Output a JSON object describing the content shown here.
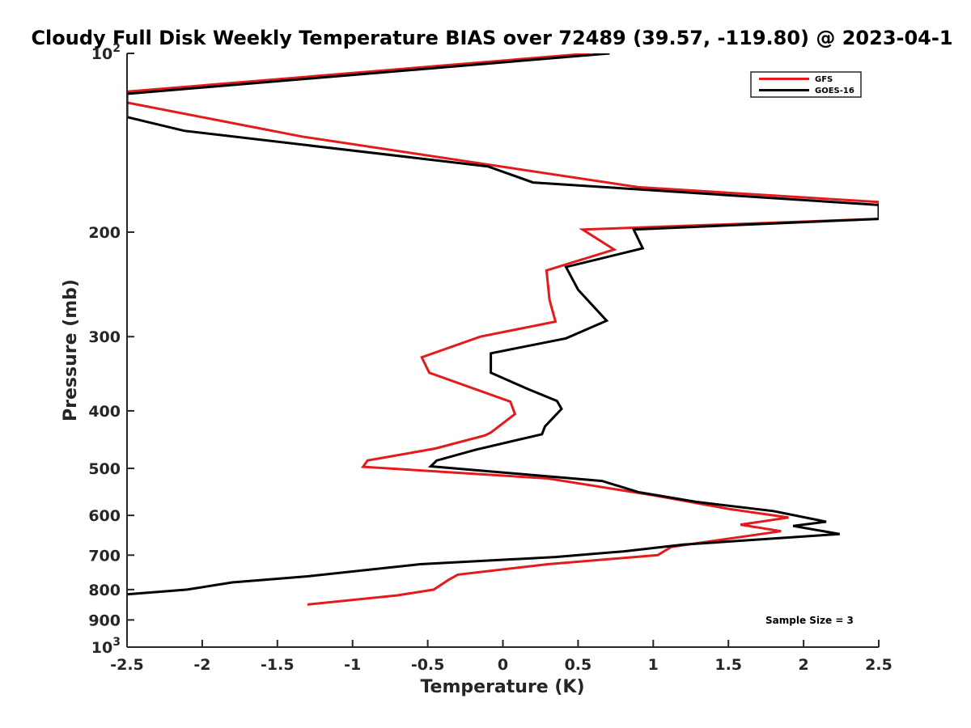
{
  "chart_data": {
    "type": "line",
    "title": "Cloudy Full Disk Weekly Temperature BIAS over 72489 (39.57, -119.80) @ 2023-04-1",
    "xlabel": "Temperature (K)",
    "ylabel": "Pressure (mb)",
    "xlim": [
      -2.5,
      2.5
    ],
    "ylim": [
      100,
      1000
    ],
    "yscale": "log",
    "yreversed": true,
    "x_ticks": [
      "-2.5",
      "-2",
      "-1.5",
      "-1",
      "-0.5",
      "0",
      "0.5",
      "1",
      "1.5",
      "2",
      "2.5"
    ],
    "y_ticks": [
      {
        "value": 100,
        "base": "10",
        "exp": "2"
      },
      {
        "value": 200,
        "label": "200"
      },
      {
        "value": 300,
        "label": "300"
      },
      {
        "value": 400,
        "label": "400"
      },
      {
        "value": 500,
        "label": "500"
      },
      {
        "value": 600,
        "label": "600"
      },
      {
        "value": 700,
        "label": "700"
      },
      {
        "value": 800,
        "label": "800"
      },
      {
        "value": 900,
        "label": "900"
      },
      {
        "value": 1000,
        "base": "10",
        "exp": "3"
      }
    ],
    "grid": false,
    "legend": "top-right",
    "annotation": "Sample Size = 3",
    "series": [
      {
        "name": "GFS",
        "color": "#e41a1c",
        "points": [
          [
            0.58,
            100
          ],
          [
            -2.5,
            116
          ],
          [
            -2.5,
            121
          ],
          [
            -1.34,
            138
          ],
          [
            0.9,
            168
          ],
          [
            2.5,
            178
          ],
          [
            2.5,
            190
          ],
          [
            0.53,
            198
          ],
          [
            0.74,
            214
          ],
          [
            0.29,
            232
          ],
          [
            0.31,
            260
          ],
          [
            0.35,
            283
          ],
          [
            -0.15,
            300
          ],
          [
            -0.54,
            325
          ],
          [
            -0.49,
            345
          ],
          [
            0.05,
            386
          ],
          [
            0.08,
            405
          ],
          [
            -0.08,
            435
          ],
          [
            -0.12,
            440
          ],
          [
            -0.45,
            463
          ],
          [
            -0.9,
            485
          ],
          [
            -0.93,
            497
          ],
          [
            0.3,
            520
          ],
          [
            1.0,
            555
          ],
          [
            1.5,
            585
          ],
          [
            1.9,
            605
          ],
          [
            1.58,
            622
          ],
          [
            1.85,
            638
          ],
          [
            1.12,
            678
          ],
          [
            1.03,
            700
          ],
          [
            0.3,
            725
          ],
          [
            -0.3,
            755
          ],
          [
            -0.36,
            770
          ],
          [
            -0.46,
            800
          ],
          [
            -0.7,
            818
          ],
          [
            -1.3,
            848
          ]
        ]
      },
      {
        "name": "GOES-16",
        "color": "#000000",
        "points": [
          [
            0.71,
            100
          ],
          [
            -2.5,
            117
          ],
          [
            -2.5,
            128
          ],
          [
            -2.12,
            135
          ],
          [
            -0.1,
            155
          ],
          [
            0.2,
            165
          ],
          [
            2.5,
            180
          ],
          [
            2.5,
            190
          ],
          [
            0.87,
            198
          ],
          [
            0.93,
            213
          ],
          [
            0.42,
            229
          ],
          [
            0.5,
            250
          ],
          [
            0.69,
            282
          ],
          [
            0.42,
            302
          ],
          [
            -0.08,
            320
          ],
          [
            -0.08,
            345
          ],
          [
            0.17,
            368
          ],
          [
            0.36,
            385
          ],
          [
            0.39,
            397
          ],
          [
            0.28,
            425
          ],
          [
            0.26,
            438
          ],
          [
            -0.18,
            465
          ],
          [
            -0.44,
            485
          ],
          [
            -0.48,
            496
          ],
          [
            0.66,
            525
          ],
          [
            0.9,
            548
          ],
          [
            1.3,
            570
          ],
          [
            1.8,
            590
          ],
          [
            2.15,
            615
          ],
          [
            1.93,
            625
          ],
          [
            2.24,
            645
          ],
          [
            1.2,
            672
          ],
          [
            0.8,
            690
          ],
          [
            0.35,
            705
          ],
          [
            -0.55,
            725
          ],
          [
            -1.3,
            760
          ],
          [
            -1.8,
            778
          ],
          [
            -2.1,
            800
          ],
          [
            -2.5,
            815
          ]
        ]
      }
    ]
  }
}
